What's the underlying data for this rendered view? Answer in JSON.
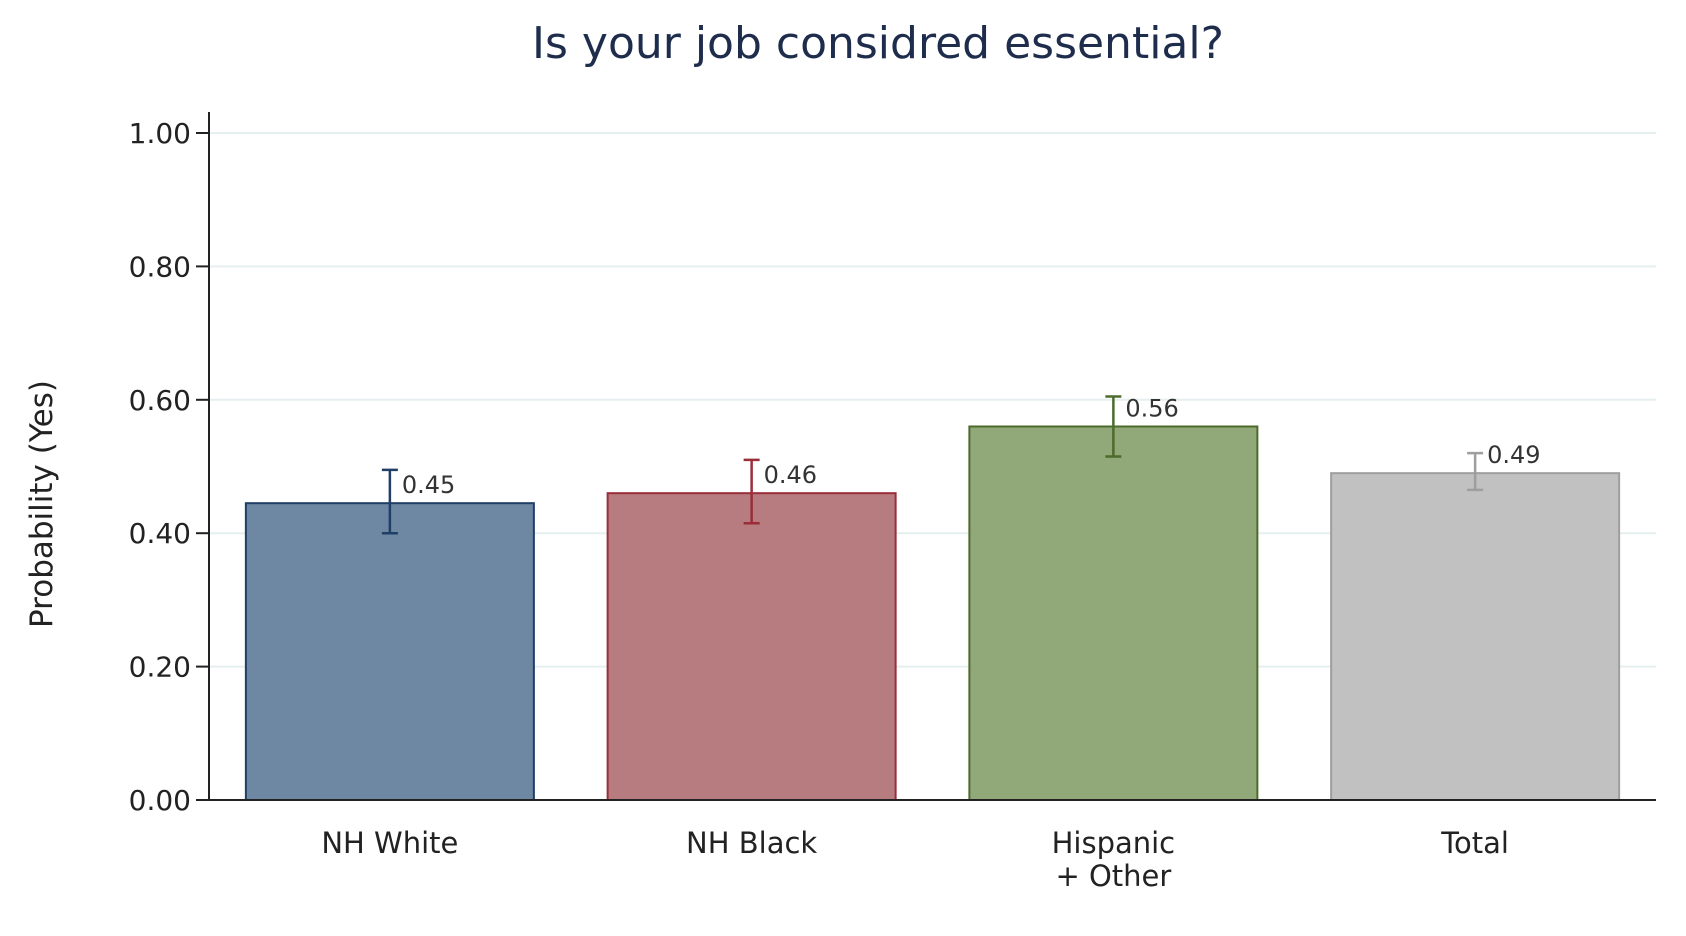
{
  "chart_data": {
    "type": "bar",
    "title": "Is your job considred essential?",
    "ylabel": "Probability (Yes)",
    "xlabel": "",
    "ylim": [
      0,
      1
    ],
    "yticks": [
      "0.00",
      "0.20",
      "0.40",
      "0.60",
      "0.80",
      "1.00"
    ],
    "ytick_values": [
      0,
      0.2,
      0.4,
      0.6,
      0.8,
      1.0
    ],
    "grid": "horizontal",
    "categories": [
      [
        "NH White"
      ],
      [
        "NH Black"
      ],
      [
        "Hispanic",
        "+ Other"
      ],
      [
        "Total"
      ]
    ],
    "values": [
      0.445,
      0.46,
      0.56,
      0.49
    ],
    "value_labels": [
      "0.45",
      "0.46",
      "0.56",
      "0.49"
    ],
    "error_low": [
      0.4,
      0.415,
      0.515,
      0.465
    ],
    "error_high": [
      0.495,
      0.51,
      0.605,
      0.52
    ],
    "fill_colors": [
      "#6e88a3",
      "#b77c7f",
      "#91a878",
      "#c1c1c1"
    ],
    "edge_colors": [
      "#1f3f66",
      "#9b2d39",
      "#4d6b2c",
      "#9e9e9e"
    ]
  }
}
